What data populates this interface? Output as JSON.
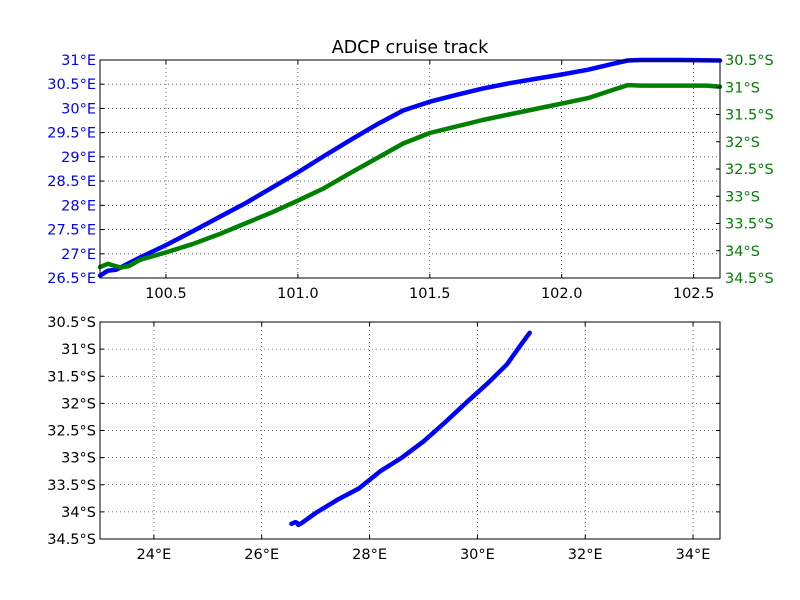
{
  "figure": {
    "title": "ADCP cruise track",
    "colors": {
      "lat_series": "#0000ff",
      "lon_series": "#008000",
      "track": "#0000ff",
      "text": "#000000"
    }
  },
  "chart_data": [
    {
      "type": "line",
      "title": "ADCP cruise track",
      "xlabel": "",
      "ylabel": "",
      "xlim": [
        100.25,
        102.6
      ],
      "x_ticks": [
        "100.5",
        "101.0",
        "101.5",
        "102.0",
        "102.5"
      ],
      "x_tick_values": [
        100.5,
        101.0,
        101.5,
        102.0,
        102.5
      ],
      "grid": true,
      "left_axis": {
        "ylim": [
          26.5,
          31
        ],
        "tick_values": [
          26.5,
          27,
          27.5,
          28,
          28.5,
          29,
          29.5,
          30,
          30.5,
          31
        ],
        "tick_labels": [
          "26.5°E",
          "27°E",
          "27.5°E",
          "28°E",
          "28.5°E",
          "29°E",
          "29.5°E",
          "30°E",
          "30.5°E",
          "31°E"
        ],
        "color": "#0000ff"
      },
      "right_axis": {
        "ylim": [
          -34.5,
          -30.5
        ],
        "tick_values": [
          -30.5,
          -31,
          -31.5,
          -32,
          -32.5,
          -33,
          -33.5,
          -34,
          -34.5
        ],
        "tick_labels": [
          "30.5°S",
          "31°S",
          "31.5°S",
          "32°S",
          "32.5°S",
          "33°S",
          "33.5°S",
          "34°S",
          "34.5°S"
        ],
        "color": "#008000"
      },
      "series": [
        {
          "axis": "left",
          "color": "#0000ff",
          "x": [
            100.25,
            100.28,
            100.31,
            100.34,
            100.4,
            100.5,
            100.6,
            100.7,
            100.8,
            100.9,
            101.0,
            101.1,
            101.2,
            101.3,
            101.4,
            101.5,
            101.6,
            101.7,
            101.8,
            101.9,
            102.0,
            102.1,
            102.2,
            102.25,
            102.3,
            102.45,
            102.6
          ],
          "y": [
            26.55,
            26.65,
            26.67,
            26.75,
            26.92,
            27.18,
            27.46,
            27.75,
            28.04,
            28.36,
            28.68,
            29.02,
            29.35,
            29.67,
            29.96,
            30.14,
            30.28,
            30.41,
            30.52,
            30.61,
            30.7,
            30.8,
            30.93,
            30.99,
            31.0,
            31.0,
            30.99
          ]
        },
        {
          "axis": "right",
          "color": "#008000",
          "x": [
            100.25,
            100.28,
            100.3,
            100.33,
            100.36,
            100.4,
            100.5,
            100.6,
            100.7,
            100.8,
            100.9,
            101.0,
            101.1,
            101.2,
            101.3,
            101.4,
            101.5,
            101.6,
            101.7,
            101.8,
            101.9,
            102.0,
            102.1,
            102.2,
            102.25,
            102.3,
            102.45,
            102.55,
            102.6
          ],
          "y": [
            -34.3,
            -34.24,
            -34.27,
            -34.31,
            -34.28,
            -34.17,
            -34.03,
            -33.88,
            -33.7,
            -33.5,
            -33.3,
            -33.08,
            -32.85,
            -32.57,
            -32.3,
            -32.03,
            -31.84,
            -31.72,
            -31.6,
            -31.5,
            -31.4,
            -31.3,
            -31.2,
            -31.04,
            -30.96,
            -30.97,
            -30.97,
            -30.97,
            -30.99
          ]
        }
      ]
    },
    {
      "type": "line",
      "title": "",
      "xlabel": "",
      "ylabel": "",
      "xlim": [
        23,
        34.5
      ],
      "ylim": [
        -34.5,
        -30.5
      ],
      "x_ticks": [
        "24°E",
        "26°E",
        "28°E",
        "30°E",
        "32°E",
        "34°E"
      ],
      "x_tick_values": [
        24,
        26,
        28,
        30,
        32,
        34
      ],
      "y_ticks": [
        "30.5°S",
        "31°S",
        "31.5°S",
        "32°S",
        "32.5°S",
        "33°S",
        "33.5°S",
        "34°S",
        "34.5°S"
      ],
      "y_tick_values": [
        -30.5,
        -31,
        -31.5,
        -32,
        -32.5,
        -33,
        -33.5,
        -34,
        -34.5
      ],
      "grid": true,
      "series": [
        {
          "color": "#0000ff",
          "x": [
            26.55,
            26.62,
            26.65,
            26.68,
            26.72,
            27.0,
            27.4,
            27.8,
            28.2,
            28.6,
            29.0,
            29.4,
            29.8,
            30.2,
            30.55,
            30.8,
            30.97
          ],
          "y": [
            -34.22,
            -34.19,
            -34.2,
            -34.24,
            -34.22,
            -34.02,
            -33.78,
            -33.57,
            -33.25,
            -33.0,
            -32.7,
            -32.35,
            -31.98,
            -31.62,
            -31.28,
            -30.93,
            -30.7
          ]
        }
      ]
    }
  ]
}
